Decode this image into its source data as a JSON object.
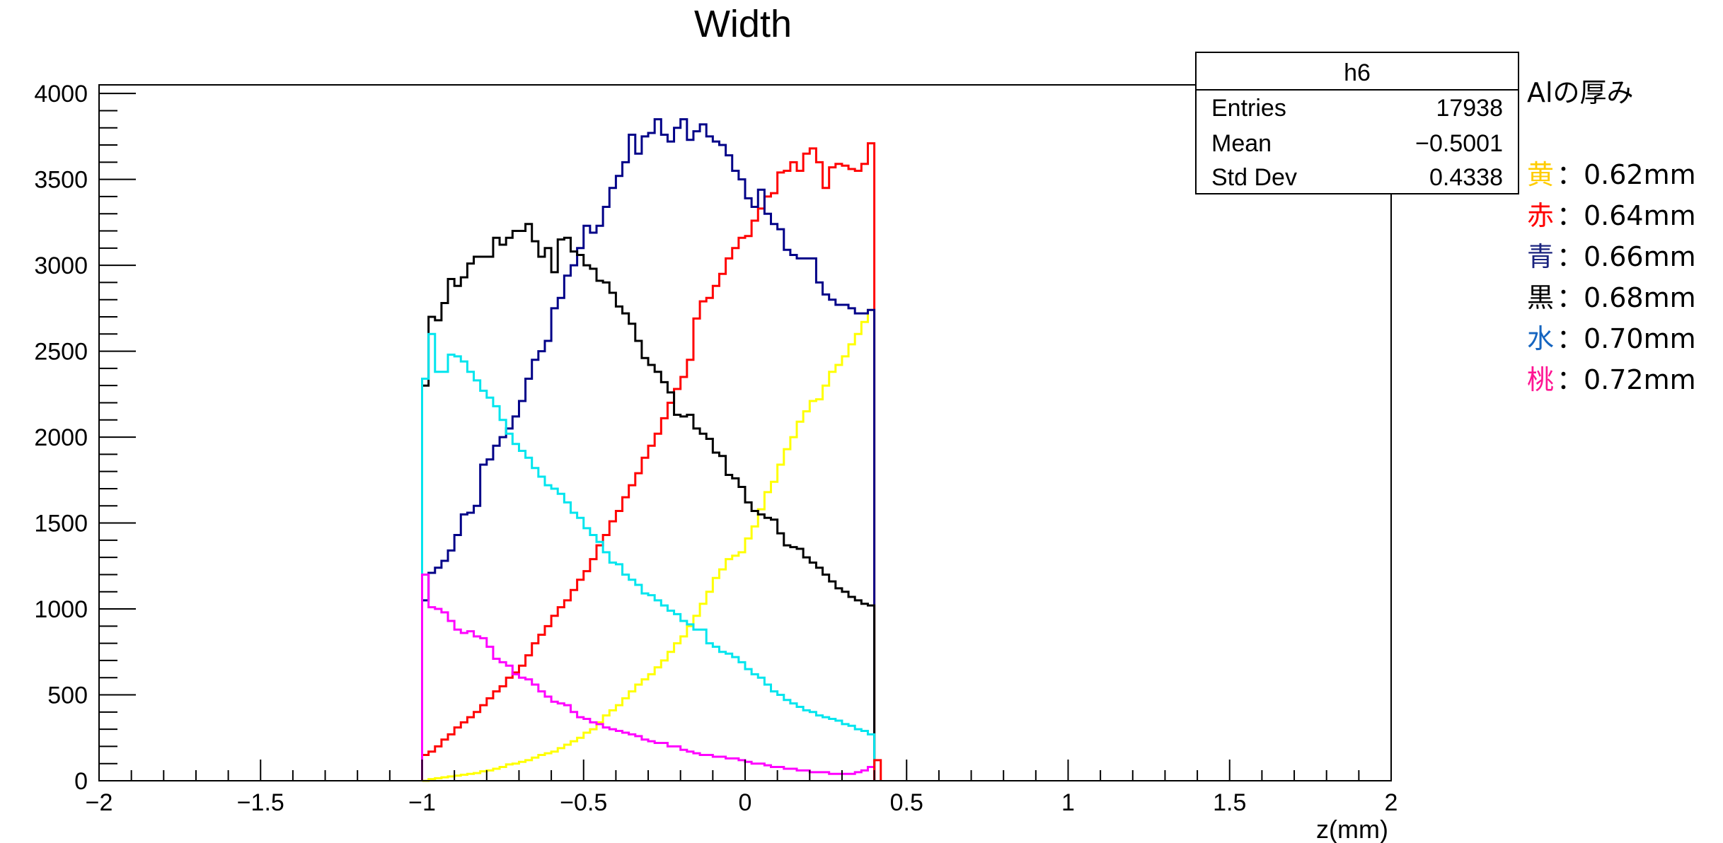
{
  "chart_data": {
    "type": "step-histogram",
    "title": "Width",
    "xlabel": "z(mm)",
    "ylabel": "",
    "xlim": [
      -2,
      2
    ],
    "ylim": [
      0,
      4050
    ],
    "x_ticks": [
      "−2",
      "−1.5",
      "−1",
      "−0.5",
      "0",
      "0.5",
      "1",
      "1.5",
      "2"
    ],
    "x_tick_values": [
      -2,
      -1.5,
      -1,
      -0.5,
      0,
      0.5,
      1,
      1.5,
      2
    ],
    "y_ticks": [
      "0",
      "500",
      "1000",
      "1500",
      "2000",
      "2500",
      "3000",
      "3500",
      "4000"
    ],
    "y_tick_values": [
      0,
      500,
      1000,
      1500,
      2000,
      2500,
      3000,
      3500,
      4000
    ],
    "bin_start": -1,
    "bin_width": 0.02,
    "series": [
      {
        "color": "#ffff00",
        "values": [
          0,
          10,
          15,
          20,
          25,
          30,
          35,
          40,
          45,
          55,
          60,
          70,
          80,
          95,
          100,
          110,
          120,
          135,
          150,
          160,
          170,
          190,
          210,
          230,
          250,
          280,
          300,
          340,
          380,
          410,
          440,
          480,
          520,
          560,
          590,
          620,
          660,
          700,
          750,
          800,
          840,
          900,
          960,
          1030,
          1100,
          1180,
          1230,
          1290,
          1310,
          1330,
          1410,
          1480,
          1580,
          1680,
          1740,
          1840,
          1930,
          2000,
          2090,
          2150,
          2210,
          2220,
          2300,
          2380,
          2420,
          2470,
          2540,
          2600,
          2670,
          2740
        ]
      },
      {
        "color": "#ff0000",
        "values": [
          150,
          170,
          200,
          240,
          270,
          310,
          340,
          370,
          400,
          440,
          480,
          520,
          550,
          600,
          630,
          670,
          730,
          800,
          850,
          900,
          960,
          1010,
          1050,
          1110,
          1170,
          1220,
          1290,
          1370,
          1430,
          1510,
          1570,
          1650,
          1720,
          1790,
          1880,
          1950,
          2020,
          2110,
          2200,
          2280,
          2350,
          2450,
          2690,
          2790,
          2810,
          2880,
          2950,
          3040,
          3100,
          3160,
          3170,
          3260,
          3330,
          3400,
          3420,
          3540,
          3550,
          3600,
          3550,
          3650,
          3680,
          3600,
          3450,
          3570,
          3590,
          3580,
          3560,
          3550,
          3590,
          3710
        ]
      },
      {
        "color": "#000088",
        "values": [
          1050,
          1210,
          1240,
          1280,
          1340,
          1430,
          1550,
          1560,
          1600,
          1840,
          1870,
          1950,
          2000,
          2050,
          2120,
          2210,
          2340,
          2450,
          2500,
          2560,
          2750,
          2810,
          2940,
          3000,
          3100,
          3230,
          3190,
          3230,
          3340,
          3450,
          3520,
          3600,
          3760,
          3650,
          3750,
          3770,
          3850,
          3760,
          3720,
          3800,
          3850,
          3730,
          3780,
          3820,
          3750,
          3720,
          3700,
          3640,
          3550,
          3500,
          3390,
          3340,
          3440,
          3300,
          3240,
          3210,
          3090,
          3060,
          3040,
          3040,
          3040,
          2900,
          2830,
          2800,
          2770,
          2770,
          2750,
          2720,
          2720,
          2740
        ]
      },
      {
        "color": "#000000",
        "values": [
          2300,
          2700,
          2680,
          2780,
          2920,
          2880,
          2930,
          3010,
          3050,
          3050,
          3050,
          3160,
          3120,
          3160,
          3200,
          3200,
          3240,
          3140,
          3050,
          3100,
          2960,
          3150,
          3160,
          3080,
          3060,
          3000,
          2980,
          2910,
          2900,
          2840,
          2760,
          2720,
          2660,
          2560,
          2460,
          2420,
          2380,
          2320,
          2260,
          2130,
          2120,
          2130,
          2050,
          2020,
          1990,
          1910,
          1890,
          1780,
          1760,
          1710,
          1620,
          1570,
          1550,
          1530,
          1520,
          1440,
          1370,
          1360,
          1350,
          1300,
          1270,
          1240,
          1200,
          1160,
          1120,
          1100,
          1070,
          1050,
          1030,
          1020
        ]
      },
      {
        "color": "#00e5ee",
        "values": [
          2340,
          2600,
          2380,
          2380,
          2480,
          2470,
          2440,
          2380,
          2330,
          2270,
          2230,
          2180,
          2100,
          2020,
          1960,
          1920,
          1880,
          1820,
          1770,
          1720,
          1700,
          1670,
          1620,
          1560,
          1530,
          1470,
          1430,
          1390,
          1330,
          1270,
          1260,
          1200,
          1170,
          1140,
          1090,
          1080,
          1050,
          1020,
          990,
          970,
          930,
          910,
          880,
          880,
          800,
          780,
          750,
          740,
          720,
          690,
          650,
          620,
          600,
          560,
          520,
          500,
          470,
          450,
          430,
          410,
          400,
          380,
          370,
          360,
          350,
          330,
          320,
          300,
          290,
          270
        ]
      },
      {
        "color": "#ff00ff",
        "values": [
          1200,
          1010,
          1000,
          980,
          930,
          880,
          860,
          870,
          840,
          830,
          780,
          710,
          690,
          670,
          620,
          600,
          590,
          560,
          520,
          490,
          460,
          450,
          440,
          400,
          370,
          360,
          340,
          330,
          310,
          300,
          290,
          280,
          270,
          260,
          240,
          230,
          220,
          220,
          200,
          200,
          180,
          170,
          160,
          150,
          150,
          140,
          140,
          130,
          130,
          120,
          110,
          100,
          100,
          90,
          80,
          80,
          70,
          70,
          60,
          60,
          50,
          50,
          50,
          40,
          40,
          40,
          40,
          50,
          60,
          80
        ]
      }
    ],
    "tail_bin": {
      "color": "#ff0000",
      "value": 120
    },
    "stats_box": {
      "name": "h6",
      "rows": [
        {
          "label": "Entries",
          "value": "17938"
        },
        {
          "label": "Mean",
          "value": "−0.5001"
        },
        {
          "label": "Std Dev",
          "value": "0.4338"
        }
      ]
    },
    "legend": {
      "title": "Alの厚み",
      "items": [
        {
          "kanji": "黄",
          "text": "：0.62mm",
          "color": "#ffcc00"
        },
        {
          "kanji": "赤",
          "text": "：0.64mm",
          "color": "#ff0000"
        },
        {
          "kanji": "青",
          "text": "：0.66mm",
          "color": "#1a237e"
        },
        {
          "kanji": "黒",
          "text": "：0.68mm",
          "color": "#000000"
        },
        {
          "kanji": "水",
          "text": "：0.70mm",
          "color": "#1565c0"
        },
        {
          "kanji": "桃",
          "text": "：0.72mm",
          "color": "#ff1493"
        }
      ]
    }
  }
}
